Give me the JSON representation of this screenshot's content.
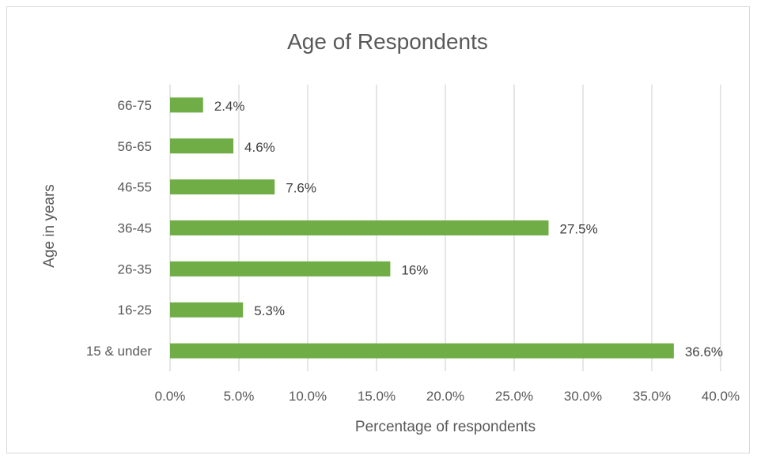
{
  "chart_data": {
    "type": "bar",
    "orientation": "horizontal",
    "title": "Age of Respondents",
    "xlabel": "Percentage of respondents",
    "ylabel": "Age in years",
    "categories": [
      "66-75",
      "56-65",
      "46-55",
      "36-45",
      "26-35",
      "16-25",
      "15 & under"
    ],
    "values": [
      2.4,
      4.6,
      7.6,
      27.5,
      16,
      5.3,
      36.6
    ],
    "data_labels": [
      "2.4%",
      "4.6%",
      "7.6%",
      "27.5%",
      "16%",
      "5.3%",
      "36.6%"
    ],
    "x_ticks": [
      "0.0%",
      "5.0%",
      "10.0%",
      "15.0%",
      "20.0%",
      "25.0%",
      "30.0%",
      "35.0%",
      "40.0%"
    ],
    "xlim": [
      0,
      40
    ],
    "grid": "vertical",
    "legend": "none",
    "bar_color": "#70ad47"
  }
}
